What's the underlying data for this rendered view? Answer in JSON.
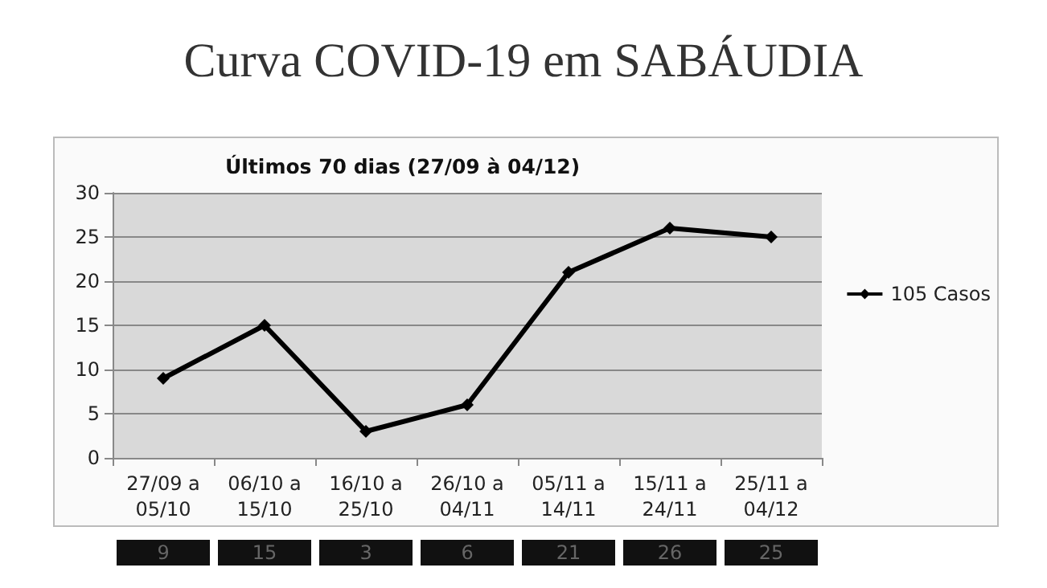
{
  "chart_data": {
    "type": "line",
    "title": "Curva COVID-19 em SABÁUDIA",
    "subtitle": "Últimos 70 dias (27/09 à 04/12)",
    "categories": [
      "27/09 a\n05/10",
      "06/10 a\n15/10",
      "16/10 a\n25/10",
      "26/10 a\n04/11",
      "05/11 a\n14/11",
      "15/11 a\n24/11",
      "25/11 a\n04/12"
    ],
    "series": [
      {
        "name": "105 Casos",
        "color": "#000000",
        "values": [
          9,
          15,
          3,
          6,
          21,
          26,
          25
        ]
      }
    ],
    "ylim": [
      0,
      30
    ],
    "yticks": [
      0,
      5,
      10,
      15,
      20,
      25,
      30
    ],
    "grid": "y",
    "legend": "right",
    "marker": "diamond",
    "line_style": "solid",
    "data_labels": true
  }
}
